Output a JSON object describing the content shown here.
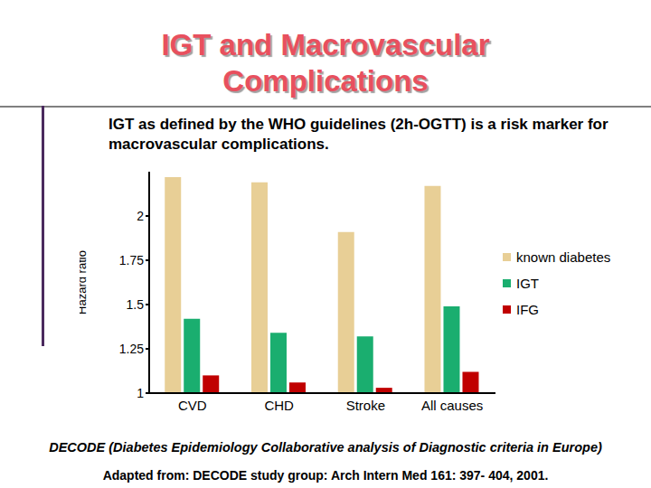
{
  "chart_data": {
    "type": "bar",
    "title": "IGT and Macrovascular Complications",
    "subtitle": "IGT as defined by the WHO guidelines (2h-OGTT) is a risk marker for macrovascular complications.",
    "y_label": "Hazard ratio",
    "categories": [
      "CVD",
      "CHD",
      "Stroke",
      "All causes"
    ],
    "series": [
      {
        "name": "known diabetes",
        "color": "#e8cf96",
        "values": [
          2.22,
          2.19,
          1.91,
          2.17
        ]
      },
      {
        "name": "IGT",
        "color": "#1aae6f",
        "values": [
          1.42,
          1.34,
          1.32,
          1.49
        ]
      },
      {
        "name": "IFG",
        "color": "#c00000",
        "values": [
          1.1,
          1.06,
          1.03,
          1.12
        ]
      }
    ],
    "ylim": [
      1,
      2.25
    ],
    "yticks": [
      1,
      1.25,
      1.5,
      1.75,
      2
    ],
    "legend": "right",
    "grid": false,
    "annotations": [
      "DECODE (Diabetes Epidemiology Collaborative analysis of Diagnostic criteria in Europe)",
      "Adapted from: DECODE study group: Arch Intern Med 161: 397- 404, 2001."
    ]
  }
}
